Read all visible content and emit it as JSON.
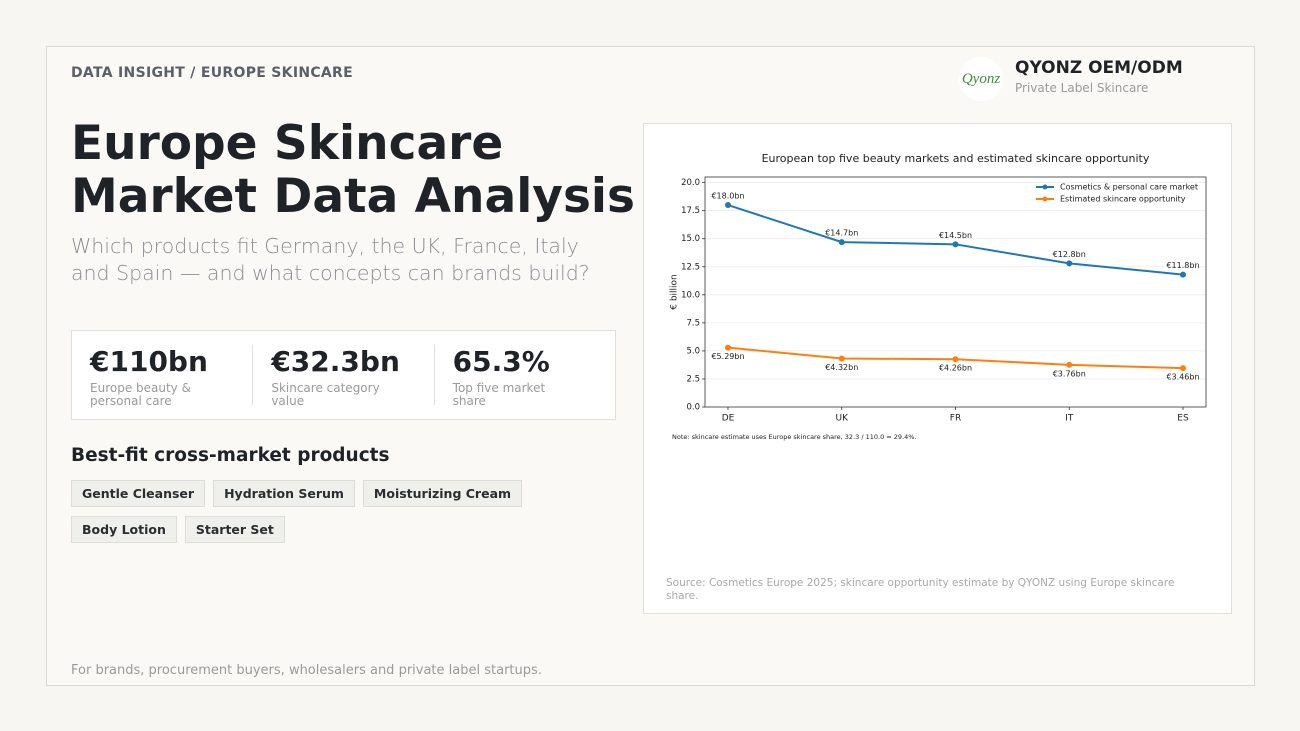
{
  "header": {
    "eyebrow": "DATA INSIGHT / EUROPE SKINCARE",
    "logo": "Qyonz",
    "brand": "QYONZ OEM/ODM",
    "brand_sub": "Private Label Skincare"
  },
  "title_lines": [
    "Europe Skincare",
    "Market Data Analysis"
  ],
  "subtitle": "Which products fit Germany, the UK, France, Italy and Spain — and what concepts can brands build?",
  "stats": [
    {
      "value": "€110bn",
      "label": "Europe beauty & personal care"
    },
    {
      "value": "€32.3bn",
      "label": "Skincare category value"
    },
    {
      "value": "65.3%",
      "label": "Top five market share"
    }
  ],
  "products": {
    "heading": "Best-fit cross-market products",
    "items": [
      "Gentle Cleanser",
      "Hydration Serum",
      "Moisturizing Cream",
      "Body Lotion",
      "Starter Set"
    ]
  },
  "chart_data": {
    "type": "line",
    "title": "European top five beauty markets and estimated skincare opportunity",
    "y_label": "€ billion",
    "categories": [
      "DE",
      "UK",
      "FR",
      "IT",
      "ES"
    ],
    "series": [
      {
        "name": "Cosmetics & personal care market",
        "color": "#1f77b4",
        "values": [
          18.0,
          14.7,
          14.5,
          12.8,
          11.8
        ],
        "value_labels": [
          "€18.0bn",
          "€14.7bn",
          "€14.5bn",
          "€12.8bn",
          "€11.8bn"
        ]
      },
      {
        "name": "Estimated skincare opportunity",
        "color": "#ff7f0e",
        "values": [
          5.29,
          4.32,
          4.26,
          3.76,
          3.46
        ],
        "value_labels": [
          "€5.29bn",
          "€4.32bn",
          "€4.26bn",
          "€3.76bn",
          "€3.46bn"
        ]
      }
    ],
    "ylim": [
      0,
      20.5
    ],
    "yticks": [
      {
        "value": 0,
        "label": "0.0"
      },
      2.5,
      {
        "value": 5,
        "label": "5.0"
      },
      7.5,
      {
        "value": 10,
        "label": "10.0"
      },
      12.5,
      {
        "value": 15,
        "label": "15.0"
      },
      17.5,
      {
        "value": 20,
        "label": "20.0"
      }
    ],
    "grid": true,
    "legend": "upper right",
    "note": "Note: skincare estimate uses Europe skincare share, 32.3 / 110.0 = 29.4%.",
    "source": "Source: Cosmetics Europe 2025; skincare opportunity estimate by QYONZ using Europe skincare share."
  },
  "footer": "For brands, procurement buyers, wholesalers and private label startups."
}
